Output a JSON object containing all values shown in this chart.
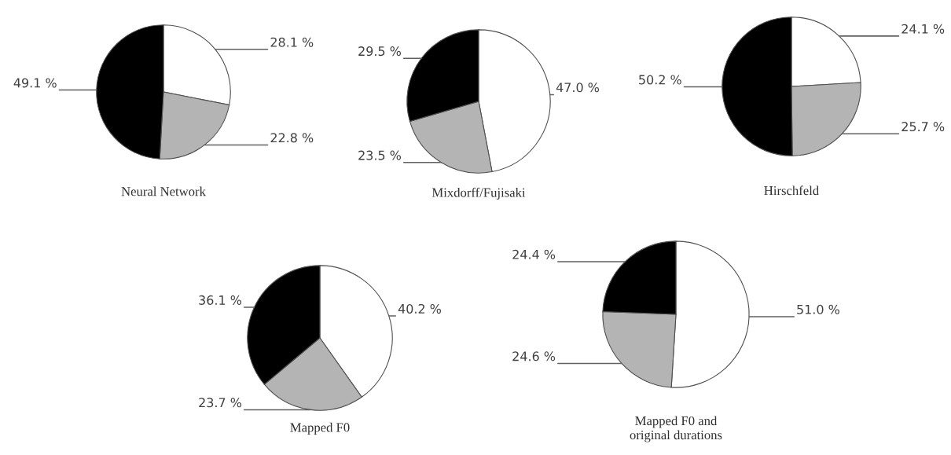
{
  "chart_data": [
    {
      "type": "pie",
      "title": "Neural Network",
      "categories": [
        null,
        null,
        null
      ],
      "values": [
        28.1,
        22.8,
        49.1
      ],
      "colors": [
        "#ffffff",
        "#b4b4b4",
        "#000000"
      ],
      "value_labels": [
        "28.1 %",
        "22.8 %",
        "49.1 %"
      ]
    },
    {
      "type": "pie",
      "title": "Mixdorff/Fujisaki",
      "categories": [
        null,
        null,
        null
      ],
      "values": [
        47.0,
        23.5,
        29.5
      ],
      "colors": [
        "#ffffff",
        "#b4b4b4",
        "#000000"
      ],
      "value_labels": [
        "47.0 %",
        "23.5 %",
        "29.5 %"
      ]
    },
    {
      "type": "pie",
      "title": "Hirschfeld",
      "categories": [
        null,
        null,
        null
      ],
      "values": [
        24.1,
        25.7,
        50.2
      ],
      "colors": [
        "#ffffff",
        "#b4b4b4",
        "#000000"
      ],
      "value_labels": [
        "24.1 %",
        "25.7 %",
        "50.2 %"
      ]
    },
    {
      "type": "pie",
      "title": "Mapped F0",
      "categories": [
        null,
        null,
        null
      ],
      "values": [
        40.2,
        23.7,
        36.1
      ],
      "colors": [
        "#ffffff",
        "#b4b4b4",
        "#000000"
      ],
      "value_labels": [
        "40.2 %",
        "23.7 %",
        "36.1 %"
      ]
    },
    {
      "type": "pie",
      "title": "Mapped F0 and\noriginal durations",
      "categories": [
        null,
        null,
        null
      ],
      "values": [
        51.0,
        24.6,
        24.4
      ],
      "colors": [
        "#ffffff",
        "#b4b4b4",
        "#000000"
      ],
      "value_labels": [
        "51.0 %",
        "24.6 %",
        "24.4 %"
      ]
    }
  ]
}
